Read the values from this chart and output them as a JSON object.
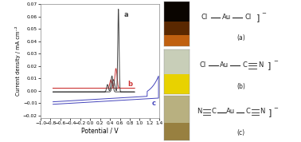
{
  "title": "",
  "xlabel": "Potential / V",
  "ylabel": "Current density / mA cm⁻²",
  "xlim": [
    -1.0,
    1.4
  ],
  "ylim": [
    -0.022,
    0.07
  ],
  "yticks": [
    -0.02,
    -0.01,
    0.0,
    0.01,
    0.02,
    0.03,
    0.04,
    0.05,
    0.06,
    0.07
  ],
  "xticks": [
    -1.0,
    -0.8,
    -0.6,
    -0.4,
    -0.2,
    0.0,
    0.2,
    0.4,
    0.6,
    0.8,
    1.0,
    1.2,
    1.4
  ],
  "curve_a_color": "#444444",
  "curve_b_color": "#cc3333",
  "curve_c_color": "#4444bb",
  "label_a": "a",
  "label_b": "b",
  "label_c": "c",
  "bg_color": "#ffffff",
  "fig_bg": "#ffffff",
  "photo_a_top": "#2a1a00",
  "photo_a_mid": "#7a3a00",
  "photo_a_bot": "#c8820a",
  "photo_b_top": "#c8d0b0",
  "photo_b_bot": "#e8c820",
  "photo_c_top": "#c0b870",
  "photo_c_bot": "#b89030",
  "chem_line_color": "#222222",
  "chem_text_color": "#222222",
  "bracket_color": "#444444"
}
